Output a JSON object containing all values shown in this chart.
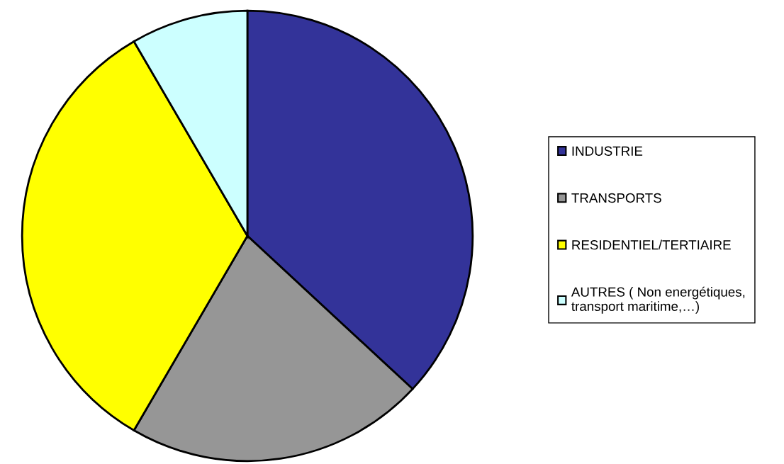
{
  "chart_data": {
    "type": "pie",
    "categories": [
      "INDUSTRIE",
      "TRANSPORTS",
      "RESIDENTIEL/TERTIAIRE",
      "AUTRES ( Non energétiques,\ntransport maritime,…)"
    ],
    "values": [
      36.9,
      21.5,
      33.2,
      8.4
    ],
    "colors": [
      "#333399",
      "#969696",
      "#ffff00",
      "#ccffff"
    ],
    "legend": "right"
  }
}
